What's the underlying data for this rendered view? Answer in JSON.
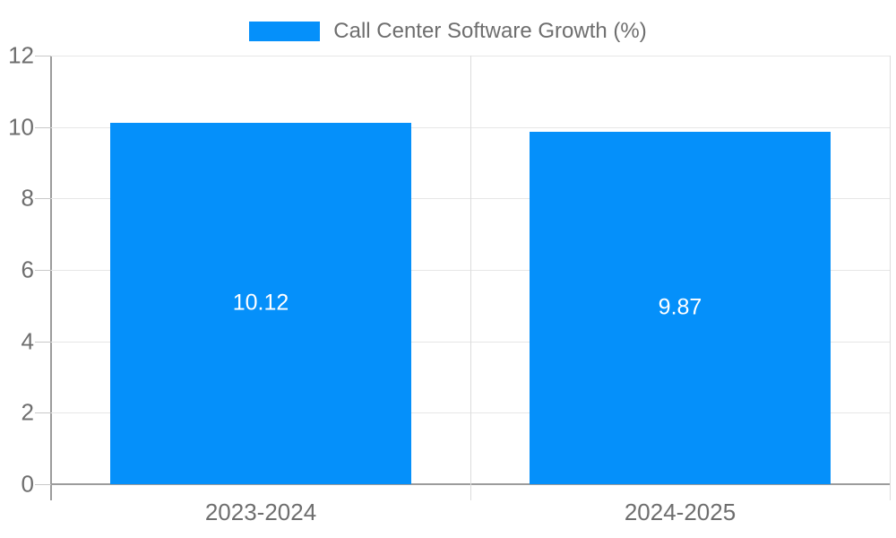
{
  "chart_data": {
    "type": "bar",
    "title": "Call Center Software Growth (%)",
    "legend": {
      "label": "Call Center Software Growth (%)",
      "position": "top-center"
    },
    "categories": [
      "2023-2024",
      "2024-2025"
    ],
    "series": [
      {
        "name": "Call Center Software Growth (%)",
        "values": [
          10.12,
          9.87
        ],
        "color": "#0590fa"
      }
    ],
    "data_labels": [
      "10.12",
      "9.87"
    ],
    "ylim": [
      0,
      12
    ],
    "yticks": [
      0,
      2,
      4,
      6,
      8,
      10,
      12
    ],
    "grid": true,
    "xlabel": "",
    "ylabel": ""
  },
  "colors": {
    "bar": "#0590fa",
    "bar_label": "#ffffff",
    "gridline": "#e6e6e6",
    "divider": "#dcdcdc",
    "axis": "#9c9c9c",
    "tick": "#c8c8c8",
    "text": "#6e6e6e",
    "background": "#ffffff"
  }
}
